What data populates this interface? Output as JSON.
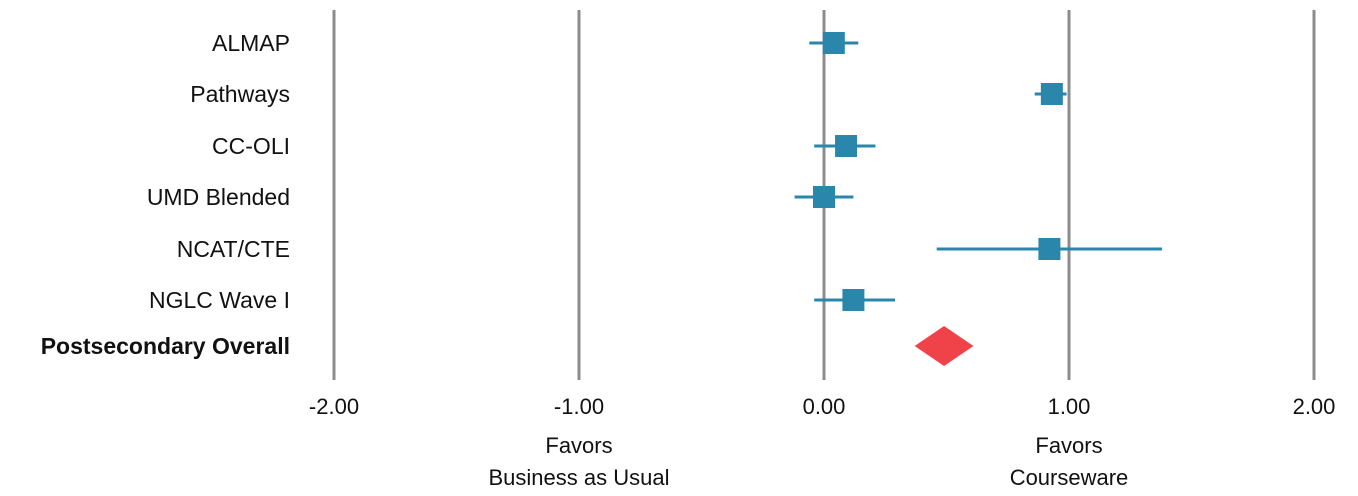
{
  "chart_data": {
    "type": "scatter",
    "subtype": "forest-plot",
    "xlim": [
      -2,
      2
    ],
    "x_ticks": [
      -2,
      -1,
      0,
      1,
      2
    ],
    "x_tick_labels": [
      "-2.00",
      "-1.00",
      "0.00",
      "1.00",
      "2.00"
    ],
    "grid": "vertical-at-ticks",
    "direction_labels": [
      {
        "x": -1,
        "lines": [
          "Favors",
          "Business as Usual"
        ]
      },
      {
        "x": 1,
        "lines": [
          "Favors",
          "Courseware"
        ]
      }
    ],
    "studies": [
      {
        "label": "ALMAP",
        "estimate": 0.04,
        "ci_low": -0.06,
        "ci_high": 0.14
      },
      {
        "label": "Pathways",
        "estimate": 0.93,
        "ci_low": 0.86,
        "ci_high": 0.99
      },
      {
        "label": "CC-OLI",
        "estimate": 0.09,
        "ci_low": -0.04,
        "ci_high": 0.21
      },
      {
        "label": "UMD Blended",
        "estimate": 0.0,
        "ci_low": -0.12,
        "ci_high": 0.12
      },
      {
        "label": "NCAT/CTE",
        "estimate": 0.92,
        "ci_low": 0.46,
        "ci_high": 1.38
      },
      {
        "label": "NGLC Wave I",
        "estimate": 0.12,
        "ci_low": -0.04,
        "ci_high": 0.29
      }
    ],
    "overall": {
      "label": "Postsecondary Overall",
      "estimate": 0.49,
      "ci_low": 0.37,
      "ci_high": 0.61
    },
    "colors": {
      "study_marker": "#2a87ab",
      "overall_marker": "#ef4349",
      "gridline": "#8c8c8c",
      "text": "#111111"
    }
  }
}
